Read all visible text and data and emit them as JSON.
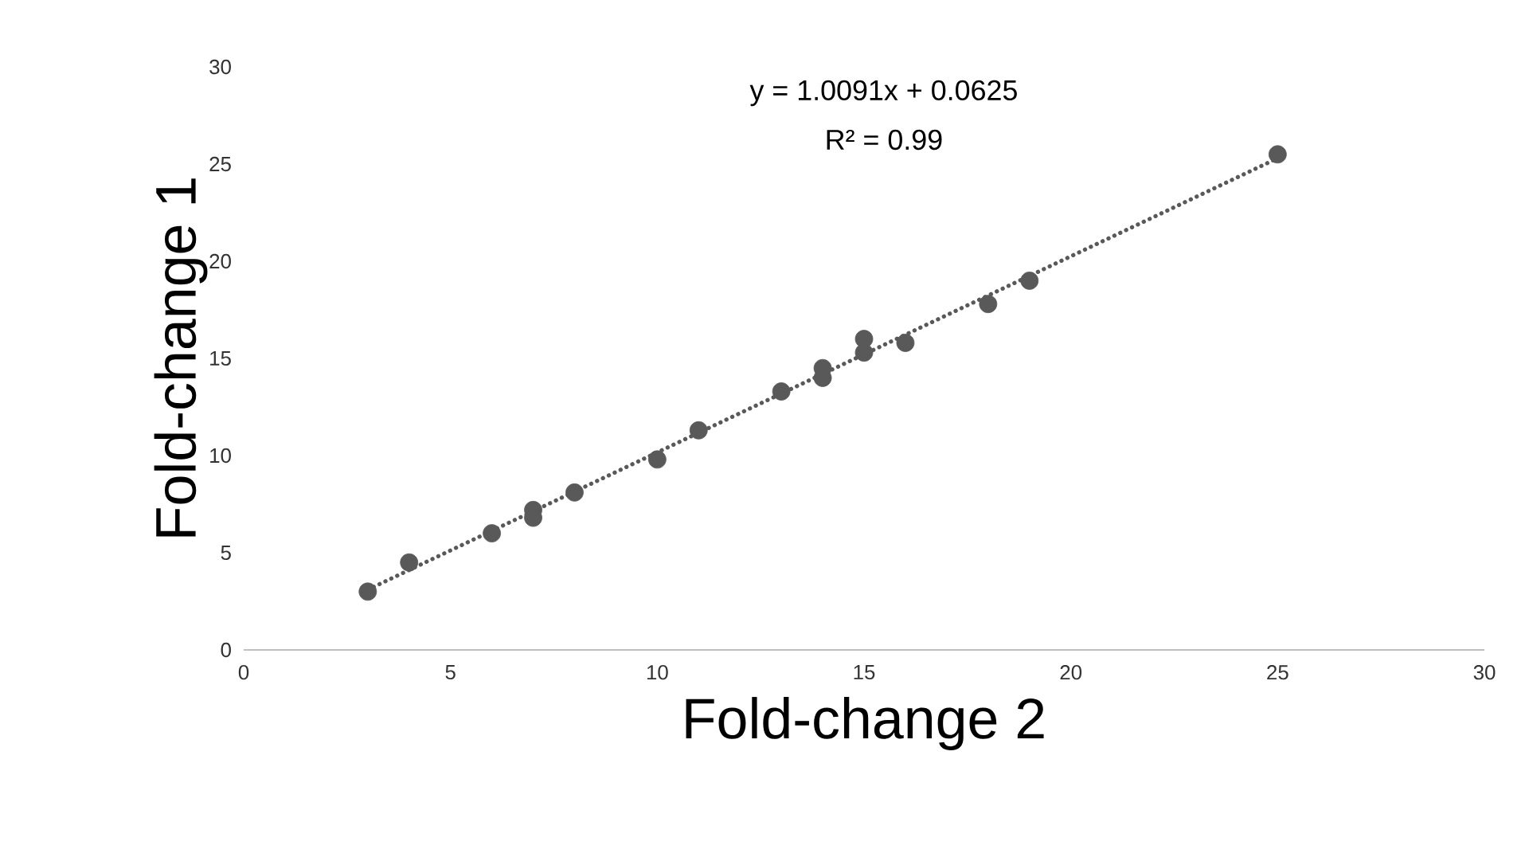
{
  "chart_data": {
    "type": "scatter",
    "xlabel": "Fold-change 2",
    "ylabel": "Fold-change 1",
    "xlim": [
      0,
      30
    ],
    "ylim": [
      0,
      30
    ],
    "xticks": [
      0,
      5,
      10,
      15,
      20,
      25,
      30
    ],
    "yticks": [
      0,
      5,
      10,
      15,
      20,
      25,
      30
    ],
    "grid": false,
    "annotations": [
      "y = 1.0091x + 0.0625",
      "R² = 0.99"
    ],
    "series": [
      {
        "color": "#595959",
        "marker": "circle",
        "x": [
          3,
          4,
          6,
          7,
          7,
          8,
          10,
          11,
          13,
          14,
          14,
          15,
          15,
          16,
          18,
          19,
          25
        ],
        "values": [
          3,
          4.5,
          6,
          7.2,
          6.8,
          8.1,
          9.8,
          11.3,
          13.3,
          14.5,
          14,
          16,
          15.3,
          15.8,
          17.8,
          19,
          25.5
        ]
      },
      {
        "type": "line",
        "color": "#595959",
        "marker": "none",
        "line_style": "dotted",
        "x": [
          3,
          25
        ],
        "values": [
          3.1,
          25.3
        ]
      }
    ]
  }
}
